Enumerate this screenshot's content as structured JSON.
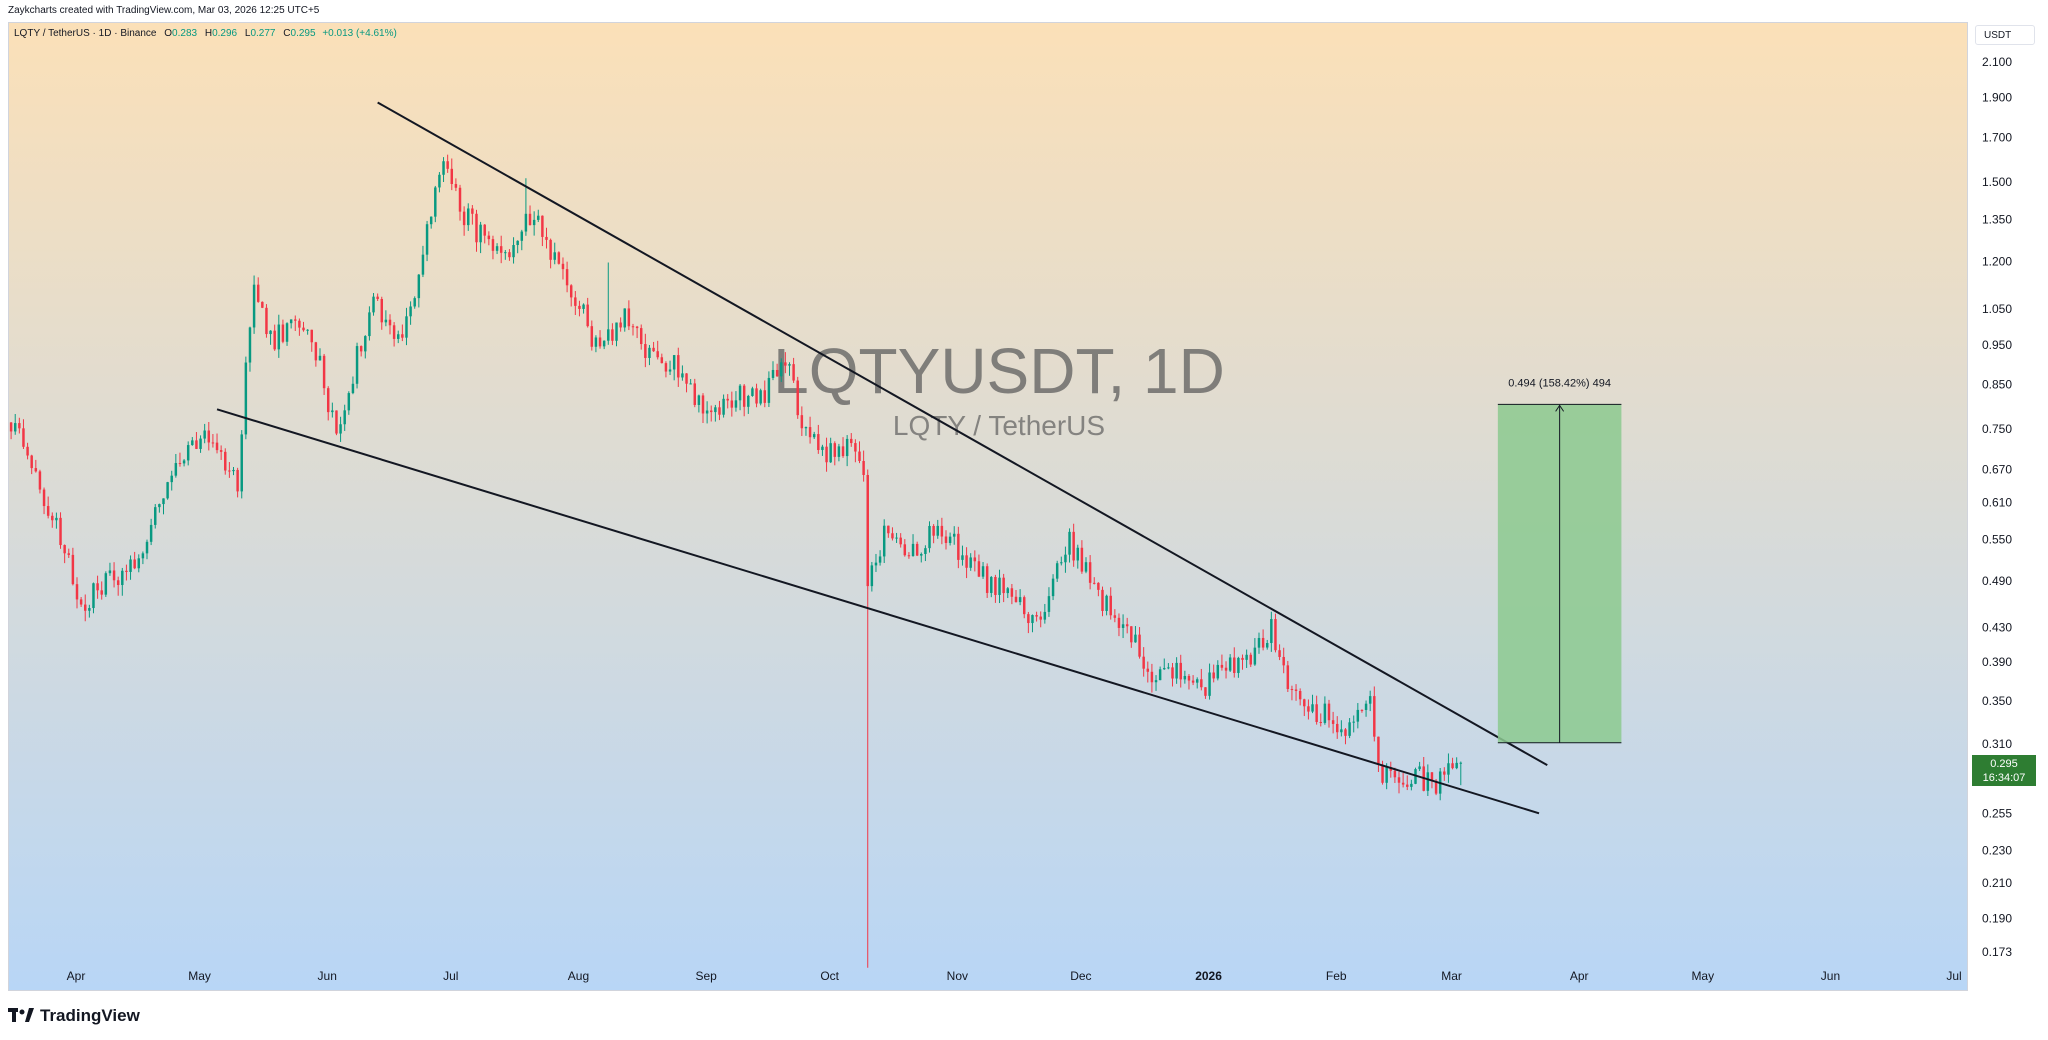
{
  "header": {
    "credit": "Zaykcharts created with TradingView.com, Mar 03, 2026 12:25 UTC+5"
  },
  "legend": {
    "symbol": "LQTY / TetherUS · 1D · Binance",
    "o_label": "O",
    "o_value": "0.283",
    "h_label": "H",
    "h_value": "0.296",
    "l_label": "L",
    "l_value": "0.277",
    "c_label": "C",
    "c_value": "0.295",
    "change": "+0.013 (+4.61%)"
  },
  "currency": "USDT",
  "price_tag": {
    "price": "0.295",
    "countdown": "16:34:07"
  },
  "brand": "TradingView",
  "watermark": {
    "title": "LQTYUSDT, 1D",
    "subtitle": "LQTY / TetherUS"
  },
  "colors": {
    "up": "#089981",
    "down": "#f23645",
    "bg_top": "#fbe0b8",
    "bg_bottom": "#b8d6f6",
    "target_fill": "#8cc98f",
    "price_tag": "#2e7d32"
  },
  "chart_data": {
    "type": "candlestick",
    "scale": "log",
    "ylim": [
      0.165,
      2.25
    ],
    "yticks": [
      "2.100",
      "1.900",
      "1.700",
      "1.500",
      "1.350",
      "1.200",
      "1.050",
      "0.950",
      "0.850",
      "0.750",
      "0.670",
      "0.610",
      "0.550",
      "0.490",
      "0.430",
      "0.390",
      "0.350",
      "0.310",
      "0.255",
      "0.230",
      "0.210",
      "0.190",
      "0.173"
    ],
    "xticks": [
      {
        "label": "Apr",
        "date": "2025-04-01"
      },
      {
        "label": "May",
        "date": "2025-05-01"
      },
      {
        "label": "Jun",
        "date": "2025-06-01"
      },
      {
        "label": "Jul",
        "date": "2025-07-01"
      },
      {
        "label": "Aug",
        "date": "2025-08-01"
      },
      {
        "label": "Sep",
        "date": "2025-09-01"
      },
      {
        "label": "Oct",
        "date": "2025-10-01"
      },
      {
        "label": "Nov",
        "date": "2025-11-01"
      },
      {
        "label": "Dec",
        "date": "2025-12-01"
      },
      {
        "label": "2026",
        "date": "2026-01-01"
      },
      {
        "label": "Feb",
        "date": "2026-02-01"
      },
      {
        "label": "Mar",
        "date": "2026-03-01"
      },
      {
        "label": "Apr",
        "date": "2026-04-01"
      },
      {
        "label": "May",
        "date": "2026-05-01"
      },
      {
        "label": "Jun",
        "date": "2026-06-01"
      },
      {
        "label": "Jul",
        "date": "2026-07-01"
      }
    ],
    "price_path": [
      [
        "2025-03-04",
        0.7
      ],
      [
        "2025-03-10",
        0.74
      ],
      [
        "2025-03-17",
        0.78
      ],
      [
        "2025-03-24",
        0.62
      ],
      [
        "2025-03-28",
        0.55
      ],
      [
        "2025-04-02",
        0.46
      ],
      [
        "2025-04-08",
        0.49
      ],
      [
        "2025-04-15",
        0.52
      ],
      [
        "2025-04-22",
        0.62
      ],
      [
        "2025-04-29",
        0.73
      ],
      [
        "2025-05-05",
        0.72
      ],
      [
        "2025-05-10",
        0.64
      ],
      [
        "2025-05-12",
        0.9
      ],
      [
        "2025-05-14",
        1.12
      ],
      [
        "2025-05-18",
        0.96
      ],
      [
        "2025-05-25",
        1.02
      ],
      [
        "2025-05-30",
        0.9
      ],
      [
        "2025-06-03",
        0.74
      ],
      [
        "2025-06-07",
        0.88
      ],
      [
        "2025-06-12",
        1.1
      ],
      [
        "2025-06-18",
        0.96
      ],
      [
        "2025-06-22",
        1.1
      ],
      [
        "2025-06-27",
        1.45
      ],
      [
        "2025-06-29",
        1.6
      ],
      [
        "2025-07-04",
        1.38
      ],
      [
        "2025-07-10",
        1.25
      ],
      [
        "2025-07-15",
        1.18
      ],
      [
        "2025-07-19",
        1.4
      ],
      [
        "2025-07-23",
        1.3
      ],
      [
        "2025-07-30",
        1.12
      ],
      [
        "2025-08-05",
        0.95
      ],
      [
        "2025-08-12",
        1.02
      ],
      [
        "2025-08-18",
        0.92
      ],
      [
        "2025-08-25",
        0.9
      ],
      [
        "2025-09-01",
        0.78
      ],
      [
        "2025-09-08",
        0.82
      ],
      [
        "2025-09-16",
        0.84
      ],
      [
        "2025-09-20",
        0.92
      ],
      [
        "2025-09-25",
        0.74
      ],
      [
        "2025-10-01",
        0.7
      ],
      [
        "2025-10-06",
        0.72
      ],
      [
        "2025-10-09",
        0.66
      ],
      [
        "2025-10-10",
        0.48
      ],
      [
        "2025-10-14",
        0.56
      ],
      [
        "2025-10-20",
        0.52
      ],
      [
        "2025-10-27",
        0.58
      ],
      [
        "2025-11-03",
        0.52
      ],
      [
        "2025-11-08",
        0.49
      ],
      [
        "2025-11-14",
        0.47
      ],
      [
        "2025-11-20",
        0.43
      ],
      [
        "2025-11-28",
        0.55
      ],
      [
        "2025-12-04",
        0.48
      ],
      [
        "2025-12-12",
        0.43
      ],
      [
        "2025-12-18",
        0.37
      ],
      [
        "2025-12-24",
        0.38
      ],
      [
        "2025-12-30",
        0.36
      ],
      [
        "2026-01-05",
        0.39
      ],
      [
        "2026-01-12",
        0.4
      ],
      [
        "2026-01-16",
        0.43
      ],
      [
        "2026-01-22",
        0.35
      ],
      [
        "2026-01-28",
        0.34
      ],
      [
        "2026-02-03",
        0.32
      ],
      [
        "2026-02-07",
        0.35
      ],
      [
        "2026-02-09",
        0.365
      ],
      [
        "2026-02-11",
        0.29
      ],
      [
        "2026-02-15",
        0.275
      ],
      [
        "2026-02-20",
        0.285
      ],
      [
        "2026-02-25",
        0.275
      ],
      [
        "2026-03-03",
        0.295
      ]
    ],
    "wicks": [
      {
        "date": "2025-10-10",
        "low": 0.166
      },
      {
        "date": "2025-08-08",
        "high": 1.2
      },
      {
        "date": "2025-07-19",
        "high": 1.52
      }
    ],
    "trendlines": [
      {
        "name": "upper-resistance",
        "from": [
          "2025-06-13",
          1.88
        ],
        "to": [
          "2026-03-24",
          0.293
        ]
      },
      {
        "name": "lower-support",
        "from": [
          "2025-05-05",
          0.795
        ],
        "to": [
          "2026-03-22",
          0.256
        ]
      }
    ],
    "target": {
      "label": "0.494 (158.42%) 494",
      "start_date": "2026-03-12",
      "end_date": "2026-04-11",
      "from": 0.312,
      "to": 0.806
    }
  }
}
